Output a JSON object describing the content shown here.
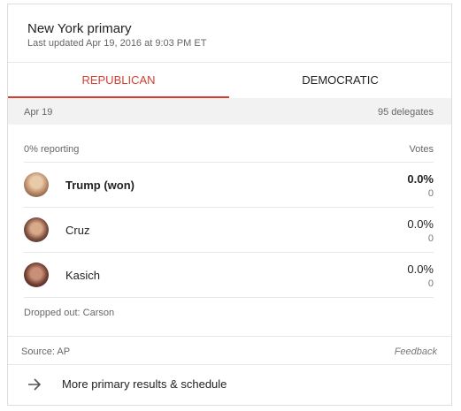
{
  "header": {
    "title": "New York primary",
    "subtitle": "Last updated Apr 19, 2016 at 9:03 PM ET"
  },
  "tabs": [
    "REPUBLICAN",
    "DEMOCRATIC"
  ],
  "summary": {
    "date": "Apr 19",
    "delegates": "95 delegates"
  },
  "results": {
    "reporting": "0% reporting",
    "votes_label": "Votes",
    "candidates": [
      {
        "name": "Trump (won)",
        "percent": "0.0%",
        "votes": 0
      },
      {
        "name": "Cruz",
        "percent": "0.0%",
        "votes": 0
      },
      {
        "name": "Kasich",
        "percent": "0.0%",
        "votes": 0
      }
    ],
    "dropped_out": "Dropped out: Carson"
  },
  "footer": {
    "source": "Source: AP",
    "feedback": "Feedback"
  },
  "link": {
    "label": "More primary results & schedule"
  }
}
